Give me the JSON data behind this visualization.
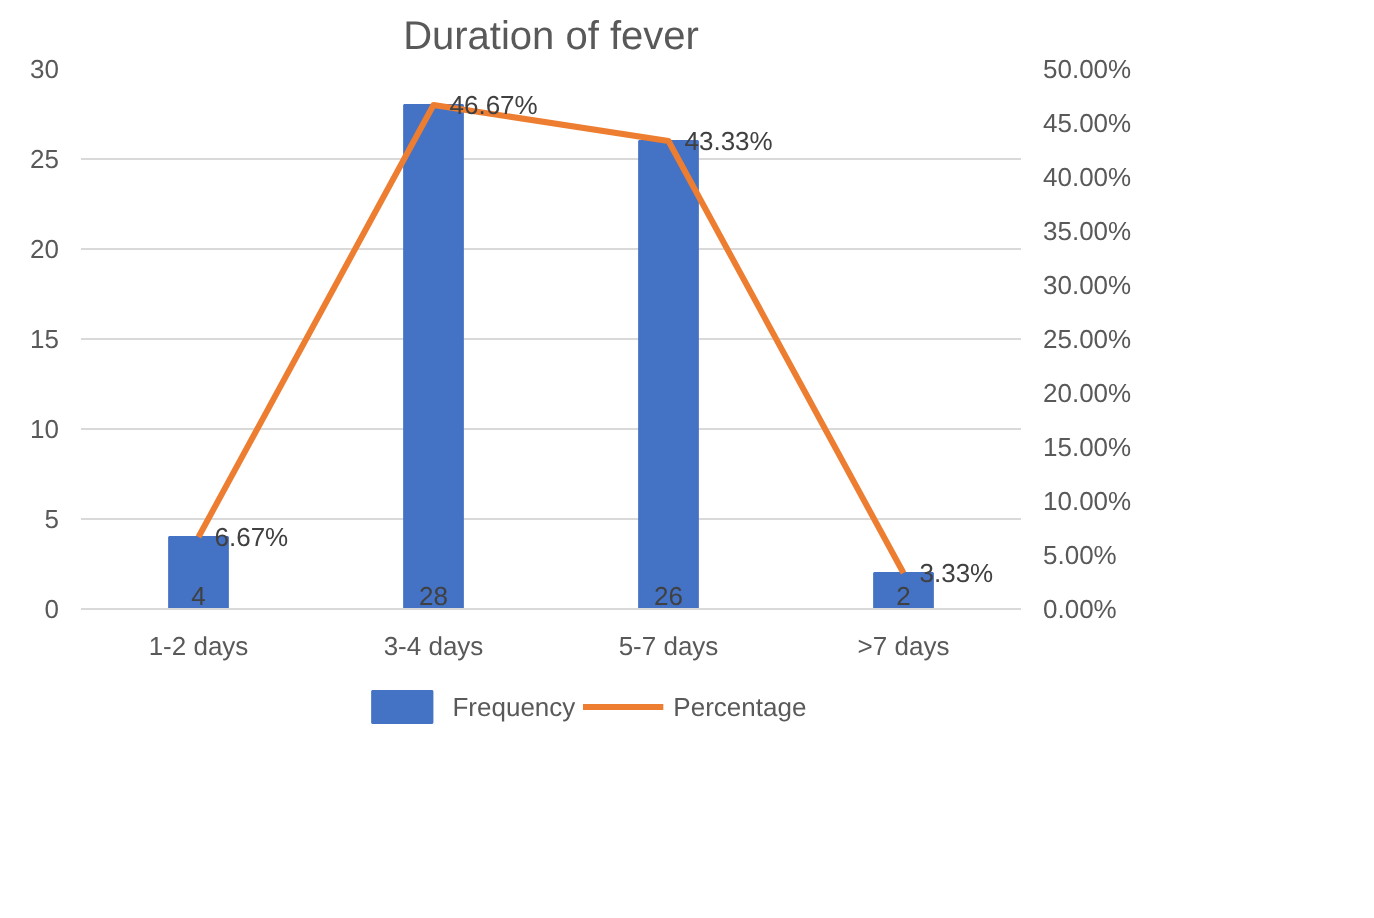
{
  "chart_data": {
    "type": "bar",
    "title": "Duration of fever",
    "categories": [
      "1-2 days",
      "3-4 days",
      "5-7 days",
      ">7 days"
    ],
    "series": [
      {
        "name": "Frequency",
        "type": "bar",
        "color": "#4472c4",
        "values": [
          4,
          28,
          26,
          2
        ],
        "value_labels": [
          "4",
          "28",
          "26",
          "2"
        ]
      },
      {
        "name": "Percentage",
        "type": "line",
        "axis": "y2",
        "color": "#ed7d31",
        "values": [
          6.67,
          46.67,
          43.33,
          3.33
        ],
        "value_labels": [
          "6.67%",
          "46.67%",
          "43.33%",
          "3.33%"
        ]
      }
    ],
    "ylim": [
      0,
      30
    ],
    "yticks": [
      0,
      5,
      10,
      15,
      20,
      25,
      30
    ],
    "y2lim": [
      0,
      50
    ],
    "y2ticks": [
      {
        "value": 0,
        "label": "0.00%"
      },
      {
        "value": 5,
        "label": "5.00%"
      },
      {
        "value": 10,
        "label": "10.00%"
      },
      {
        "value": 15,
        "label": "15.00%"
      },
      {
        "value": 20,
        "label": "20.00%"
      },
      {
        "value": 25,
        "label": "25.00%"
      },
      {
        "value": 30,
        "label": "30.00%"
      },
      {
        "value": 35,
        "label": "35.00%"
      },
      {
        "value": 40,
        "label": "40.00%"
      },
      {
        "value": 45,
        "label": "45.00%"
      },
      {
        "value": 50,
        "label": "50.00%"
      }
    ],
    "grid": "y",
    "legend": "bottom",
    "marker": "none",
    "line_style": "solid"
  }
}
